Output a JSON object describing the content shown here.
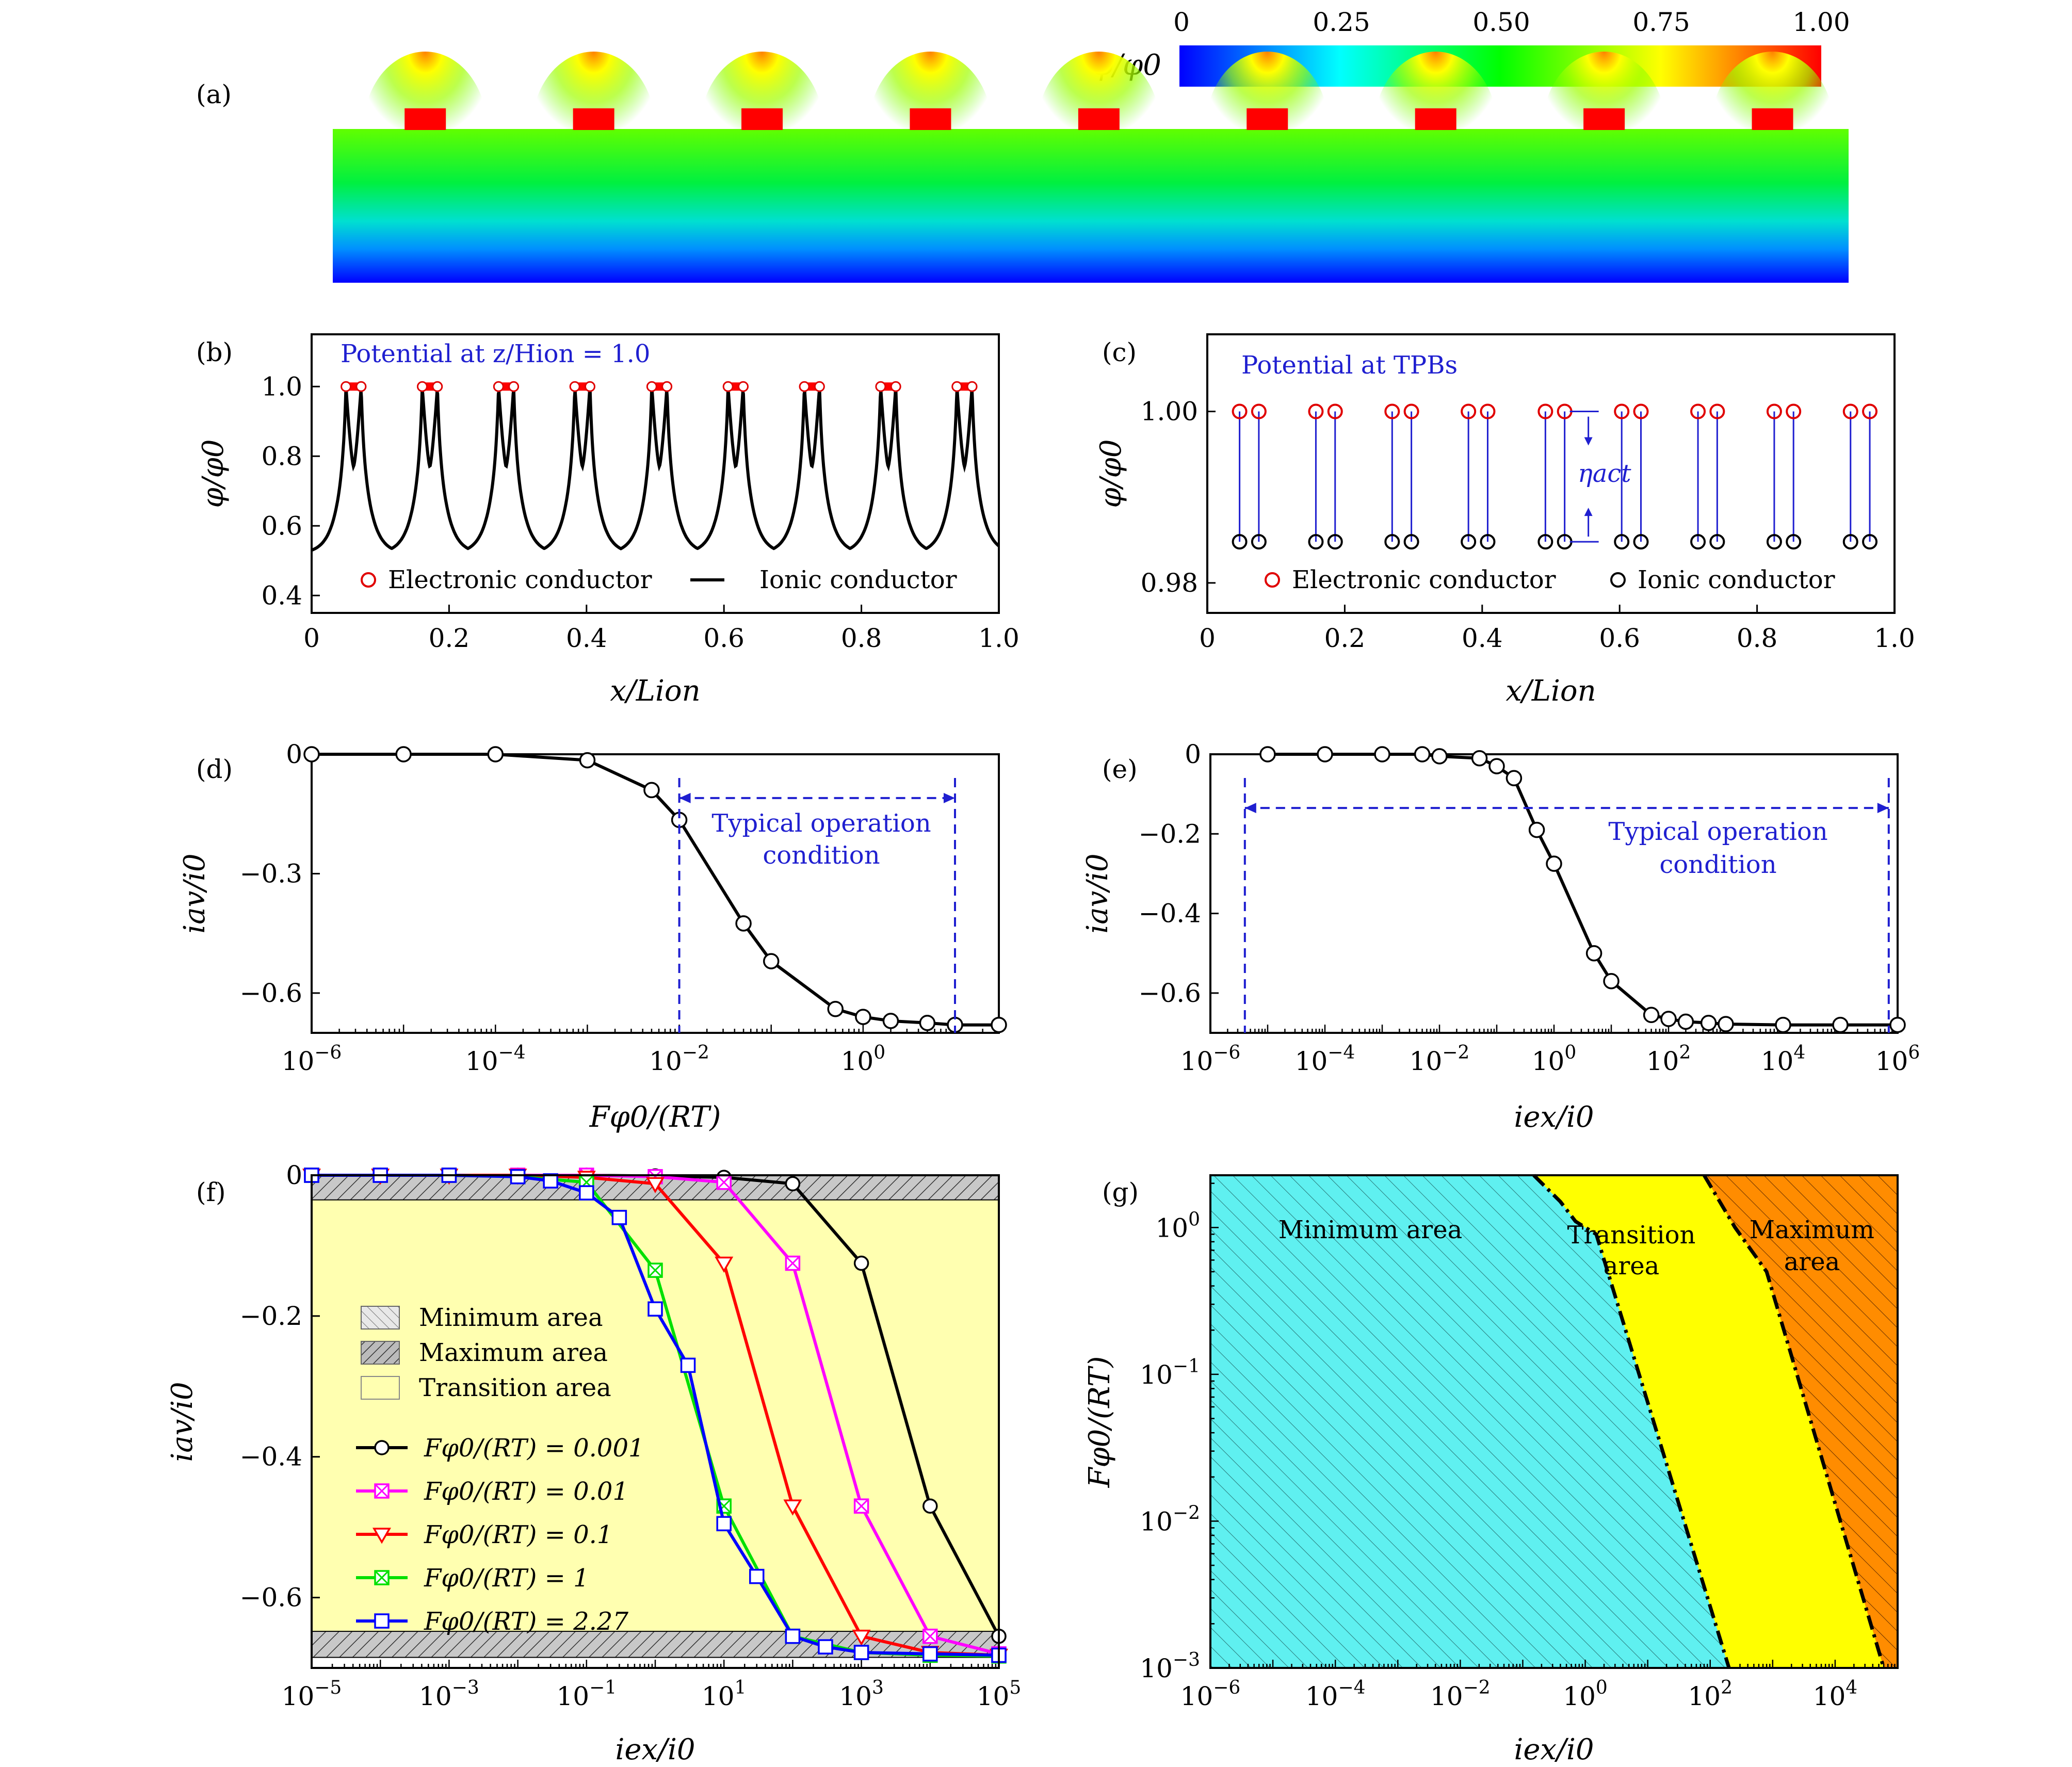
{
  "chart_data": [
    {
      "panel": "(a)",
      "type": "heatmap",
      "colorbar": {
        "label": "φ/φ0",
        "ticks": [
          "0",
          "0.25",
          "0.50",
          "0.75",
          "1.00"
        ]
      },
      "electrodes": 9
    },
    {
      "panel": "(b)",
      "type": "line",
      "title": "Potential at z/Hion = 1.0",
      "xlabel": "x/Lion",
      "ylabel": "φ/φ0",
      "xlim": [
        0,
        1.0
      ],
      "ylim": [
        0.35,
        1.15
      ],
      "xticks": [
        "0",
        "0.2",
        "0.4",
        "0.6",
        "0.8",
        "1.0"
      ],
      "yticks": [
        "0.4",
        "0.6",
        "0.8",
        "1.0"
      ],
      "centers": [
        0.061,
        0.172,
        0.283,
        0.394,
        0.506,
        0.617,
        0.728,
        0.839,
        0.95
      ],
      "series": [
        {
          "name": "Electronic conductor",
          "marker": "circle",
          "color": "#e00000"
        },
        {
          "name": "Ionic conductor",
          "marker": "line",
          "color": "#000000",
          "min": 0.52,
          "peak": 1.0,
          "mid": 0.77
        }
      ]
    },
    {
      "panel": "(c)",
      "type": "scatter",
      "title": "Potential at TPBs",
      "xlabel": "x/Lion",
      "ylabel": "φ/φ0",
      "xlim": [
        0,
        1.0
      ],
      "ylim": [
        0.9765,
        1.009
      ],
      "xticks": [
        "0",
        "0.2",
        "0.4",
        "0.6",
        "0.8",
        "1.0"
      ],
      "yticks": [
        "0.98",
        "1.00"
      ],
      "centers": [
        0.061,
        0.172,
        0.283,
        0.394,
        0.506,
        0.617,
        0.728,
        0.839,
        0.95
      ],
      "series": [
        {
          "name": "Electronic conductor",
          "y": 1.0,
          "color": "#e00000"
        },
        {
          "name": "Ionic conductor",
          "y": 0.9848,
          "color": "#000000"
        }
      ],
      "annotation": "ηact"
    },
    {
      "panel": "(d)",
      "type": "line",
      "xlabel": "Fφ0/(RT)",
      "ylabel": "iav/i0",
      "xscale": "log",
      "xlim": [
        1e-06,
        30
      ],
      "ylim": [
        -0.7,
        0.0
      ],
      "xticks": [
        "10^-6",
        "10^-4",
        "10^-2",
        "10^0"
      ],
      "yticks": [
        "0",
        "-0.3",
        "-0.6"
      ],
      "x": [
        1e-06,
        1e-05,
        0.0001,
        0.001,
        0.005,
        0.01,
        0.05,
        0.1,
        0.5,
        1,
        2,
        5,
        10,
        30
      ],
      "y": [
        0.0,
        0.0,
        0.0,
        -0.015,
        -0.09,
        -0.165,
        -0.425,
        -0.52,
        -0.64,
        -0.66,
        -0.67,
        -0.675,
        -0.68,
        -0.68
      ],
      "span": {
        "label": "Typical operation condition",
        "x": [
          0.01,
          10
        ],
        "y": -0.11
      }
    },
    {
      "panel": "(e)",
      "type": "line",
      "xlabel": "iex/i0",
      "ylabel": "iav/i0",
      "xscale": "log",
      "xlim": [
        1e-06,
        1000000.0
      ],
      "ylim": [
        -0.7,
        0.0
      ],
      "xticks": [
        "10^-6",
        "10^-4",
        "10^-2",
        "10^0",
        "10^2",
        "10^4",
        "10^6"
      ],
      "yticks": [
        "0",
        "-0.2",
        "-0.4",
        "-0.6"
      ],
      "x": [
        1e-05,
        0.0001,
        0.001,
        0.005,
        0.01,
        0.05,
        0.1,
        0.2,
        0.5,
        1,
        5,
        10,
        50,
        100,
        200,
        500,
        1000,
        10000,
        100000,
        1000000
      ],
      "y": [
        0,
        0,
        0,
        0,
        -0.005,
        -0.01,
        -0.03,
        -0.06,
        -0.19,
        -0.275,
        -0.5,
        -0.57,
        -0.655,
        -0.665,
        -0.672,
        -0.675,
        -0.678,
        -0.68,
        -0.68,
        -0.68
      ],
      "span": {
        "label": "Typical operation condition",
        "x": [
          4e-06,
          700000.0
        ],
        "y": -0.135
      }
    },
    {
      "panel": "(f)",
      "type": "line",
      "xlabel": "iex/i0",
      "ylabel": "iav/i0",
      "xscale": "log",
      "xlim": [
        1e-05,
        100000.0
      ],
      "ylim": [
        -0.7,
        0.0
      ],
      "xticks": [
        "10^-5",
        "10^-3",
        "10^-1",
        "10^1",
        "10^3",
        "10^5"
      ],
      "yticks": [
        "0",
        "-0.2",
        "-0.4",
        "-0.6"
      ],
      "regions": [
        {
          "name": "Minimum area",
          "y": [
            -0.035,
            0.0
          ]
        },
        {
          "name": "Transition area",
          "y": [
            -0.648,
            -0.035
          ]
        },
        {
          "name": "Maximum area",
          "y": [
            -0.685,
            -0.648
          ]
        }
      ],
      "series": [
        {
          "name": "Fφ0/(RT) = 0.001",
          "marker": "circle",
          "color": "#000000",
          "x": [
            1e-05,
            0.0001,
            0.001,
            0.01,
            0.1,
            1,
            10,
            100,
            1000,
            10000,
            100000
          ],
          "y": [
            0,
            0,
            0,
            0,
            0,
            -0.001,
            -0.003,
            -0.012,
            -0.125,
            -0.47,
            -0.655
          ]
        },
        {
          "name": "Fφ0/(RT) = 0.01",
          "marker": "square-x",
          "color": "#ff00ff",
          "x": [
            1e-05,
            0.0001,
            0.001,
            0.01,
            0.1,
            1,
            10,
            100,
            1000,
            10000,
            100000
          ],
          "y": [
            0,
            0,
            0,
            0,
            0,
            -0.002,
            -0.01,
            -0.125,
            -0.47,
            -0.655,
            -0.68
          ]
        },
        {
          "name": "Fφ0/(RT) = 0.1",
          "marker": "triangle-down",
          "color": "#ff0000",
          "x": [
            1e-05,
            0.0001,
            0.001,
            0.01,
            0.1,
            1,
            10,
            100,
            1000,
            10000,
            100000
          ],
          "y": [
            0,
            0,
            0,
            0,
            -0.003,
            -0.012,
            -0.125,
            -0.47,
            -0.655,
            -0.678,
            -0.682
          ]
        },
        {
          "name": "Fφ0/(RT) = 1",
          "marker": "square-x",
          "color": "#00e000",
          "x": [
            1e-05,
            0.0001,
            0.001,
            0.01,
            0.1,
            1,
            10,
            100,
            1000,
            10000,
            100000
          ],
          "y": [
            0,
            0,
            0,
            -0.002,
            -0.01,
            -0.135,
            -0.47,
            -0.655,
            -0.678,
            -0.682,
            -0.683
          ]
        },
        {
          "name": "Fφ0/(RT) = 2.27",
          "marker": "square",
          "color": "#0000ff",
          "x": [
            1e-05,
            0.0001,
            0.001,
            0.01,
            0.03,
            0.1,
            0.3,
            1,
            3,
            10,
            30,
            100,
            300,
            1000,
            10000,
            100000
          ],
          "y": [
            0,
            0,
            0,
            -0.002,
            -0.008,
            -0.025,
            -0.06,
            -0.19,
            -0.27,
            -0.495,
            -0.57,
            -0.655,
            -0.67,
            -0.678,
            -0.68,
            -0.682
          ]
        }
      ]
    },
    {
      "panel": "(g)",
      "type": "area",
      "xlabel": "iex/i0",
      "ylabel": "Fφ0/(RT)",
      "xscale": "log",
      "yscale": "log",
      "xlim": [
        1e-06,
        100000.0
      ],
      "ylim": [
        0.001,
        2.27
      ],
      "xticks": [
        "10^-6",
        "10^-4",
        "10^-2",
        "10^0",
        "10^2",
        "10^4"
      ],
      "yticks": [
        "10^-3",
        "10^-2",
        "10^-1",
        "10^0"
      ],
      "regions": [
        "Minimum area",
        "Transition area",
        "Maximum area"
      ],
      "boundary_min": {
        "x": [
          0.15,
          0.4,
          0.7,
          1.5,
          200
        ],
        "y": [
          2.27,
          1.5,
          1.1,
          0.9,
          0.001
        ]
      },
      "boundary_max": {
        "x": [
          80,
          250,
          800,
          60000
        ],
        "y": [
          2.27,
          1.0,
          0.5,
          0.001
        ]
      }
    }
  ],
  "text": {
    "a_panel": "(a)",
    "b_panel": "(b)",
    "c_panel": "(c)",
    "d_panel": "(d)",
    "e_panel": "(e)",
    "f_panel": "(f)",
    "g_panel": "(g)",
    "phi_ratio": "φ/φ0",
    "b_title": "Potential at z/Hion = 1.0",
    "c_title": "Potential at TPBs",
    "x_over_Lion": "x/Lion",
    "legend_electronic": "Electronic conductor",
    "legend_ionic": "Ionic conductor",
    "eta_act": "ηact",
    "typical_1": "Typical operation",
    "typical_2": "condition",
    "iav_i0": "iav/i0",
    "F_phi_RT": "Fφ0/(RT)",
    "iex_i0": "iex/i0",
    "min_area": "Minimum area",
    "max_area": "Maximum area",
    "transition_area": "Transition area",
    "transition_1": "Transition",
    "area_word": "area",
    "maximum_word": "Maximum",
    "f_legend": [
      "Fφ0/(RT) = 0.001",
      "Fφ0/(RT) = 0.01",
      "Fφ0/(RT) = 0.1",
      "Fφ0/(RT) = 1",
      "Fφ0/(RT) = 2.27"
    ]
  }
}
